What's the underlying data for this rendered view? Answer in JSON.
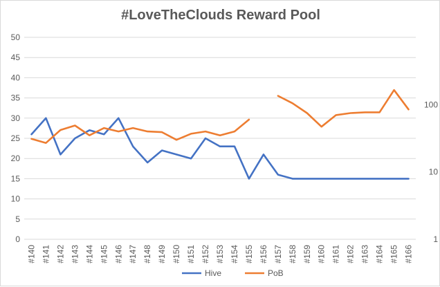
{
  "chart_data": {
    "type": "line",
    "title": "#LoveTheClouds Reward Pool",
    "categories": [
      "#140",
      "#141",
      "#142",
      "#143",
      "#144",
      "#145",
      "#146",
      "#147",
      "#148",
      "#149",
      "#150",
      "#151",
      "#152",
      "#153",
      "#154",
      "#155",
      "#156",
      "#157",
      "#158",
      "#159",
      "#160",
      "#161",
      "#162",
      "#163",
      "#164",
      "#165",
      "#166"
    ],
    "y_left": {
      "ylim": [
        0,
        50
      ],
      "ticks": [
        0,
        5,
        10,
        15,
        20,
        25,
        30,
        35,
        40,
        45,
        50
      ],
      "grid": true
    },
    "y_right": {
      "scale": "log",
      "ylim": [
        1,
        1000
      ],
      "ticks": [
        1,
        10,
        100
      ],
      "tick_labels": [
        "1",
        "10",
        "100"
      ]
    },
    "series": [
      {
        "name": "Hive",
        "axis": "left",
        "color": "#4472c4",
        "values": [
          26,
          30,
          21,
          25,
          27,
          26,
          30,
          23,
          19,
          22,
          21,
          20,
          25,
          23,
          23,
          15,
          21,
          16,
          15,
          15,
          15,
          15,
          15,
          15,
          15,
          15,
          15
        ]
      },
      {
        "name": "PoB",
        "axis": "right",
        "color": "#ed7d31",
        "values": [
          31,
          27,
          42,
          49,
          35,
          45,
          40,
          45,
          40,
          39,
          30,
          37,
          40,
          35,
          40,
          60,
          null,
          135,
          105,
          75,
          47,
          70,
          75,
          77,
          77,
          165,
          85
        ]
      }
    ],
    "legend": {
      "placement": "bottom",
      "items": [
        "Hive",
        "PoB"
      ]
    }
  }
}
